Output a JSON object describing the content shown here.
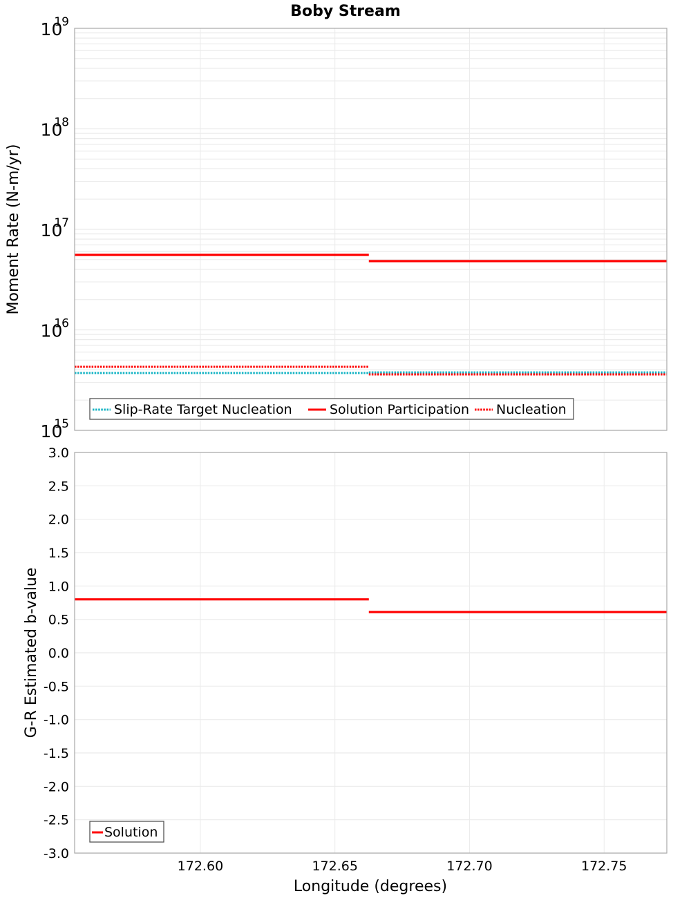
{
  "chart_data": [
    {
      "type": "line",
      "subtype": "step",
      "title": "Boby Stream",
      "xlabel": "Longitude (degrees)",
      "ylabel": "Moment Rate (N-m/yr)",
      "yscale": "log",
      "ylim": [
        1000000000000000.0,
        1e+19
      ],
      "xlim": [
        172.5533,
        172.7733
      ],
      "yticks": [
        {
          "base": "10",
          "exp": "19",
          "value": 1e+19
        },
        {
          "base": "10",
          "exp": "18",
          "value": 1e+18
        },
        {
          "base": "10",
          "exp": "17",
          "value": 1e+17
        },
        {
          "base": "10",
          "exp": "16",
          "value": 1e+16
        },
        {
          "base": "10",
          "exp": "15",
          "value": 1000000000000000.0
        }
      ],
      "grid": true,
      "legend_position": "lower-left",
      "series": [
        {
          "name": "Slip-Rate Target Nucleation",
          "color": "#16b4c4",
          "style": "dotted",
          "segments": [
            {
              "x0": 172.5533,
              "x1": 172.6626,
              "y": 3720000000000000.0
            },
            {
              "x0": 172.6626,
              "x1": 172.7733,
              "y": 3770000000000000.0
            }
          ]
        },
        {
          "name": "Solution Participation",
          "color": "#ff0000",
          "style": "solid",
          "segments": [
            {
              "x0": 172.5533,
              "x1": 172.6626,
              "y": 5.57e+16
            },
            {
              "x0": 172.6626,
              "x1": 172.7733,
              "y": 4.83e+16
            }
          ]
        },
        {
          "name": "Nucleation",
          "color": "#ff0000",
          "style": "dotted",
          "segments": [
            {
              "x0": 172.5533,
              "x1": 172.6626,
              "y": 4290000000000000.0
            },
            {
              "x0": 172.6626,
              "x1": 172.7733,
              "y": 3600000000000000.0
            }
          ]
        }
      ]
    },
    {
      "type": "line",
      "subtype": "step",
      "title": "",
      "xlabel": "Longitude (degrees)",
      "ylabel": "G-R Estimated b-value",
      "ylim": [
        -3.0,
        3.0
      ],
      "xlim": [
        172.5533,
        172.7733
      ],
      "yticks": [
        "3.0",
        "2.5",
        "2.0",
        "1.5",
        "1.0",
        "0.5",
        "0.0",
        "-0.5",
        "-1.0",
        "-1.5",
        "-2.0",
        "-2.5",
        "-3.0"
      ],
      "xticks": [
        "172.60",
        "172.65",
        "172.70",
        "172.75"
      ],
      "grid": true,
      "legend_position": "lower-left",
      "series": [
        {
          "name": "Solution",
          "color": "#ff0000",
          "style": "solid",
          "segments": [
            {
              "x0": 172.5533,
              "x1": 172.6626,
              "y": 0.8
            },
            {
              "x0": 172.6626,
              "x1": 172.7733,
              "y": 0.61
            }
          ]
        }
      ]
    }
  ],
  "labels": {
    "title": "Boby Stream",
    "top_ylabel": "Moment Rate (N-m/yr)",
    "bottom_ylabel": "G-R Estimated b-value",
    "xlabel": "Longitude (degrees)",
    "legend_top": [
      "Slip-Rate Target Nucleation",
      "Solution Participation",
      "Nucleation"
    ],
    "legend_bottom": [
      "Solution"
    ]
  }
}
